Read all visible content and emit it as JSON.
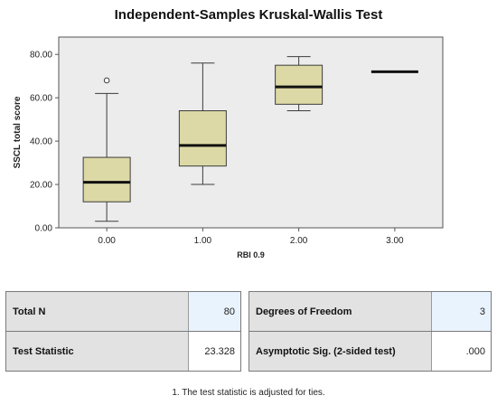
{
  "chart_data": {
    "type": "boxplot",
    "title": "Independent-Samples Kruskal-Wallis Test",
    "xlabel": "RBI 0.9",
    "ylabel": "SSCL total score",
    "ylim": [
      0,
      88
    ],
    "yticks": [
      "0.00",
      "20.00",
      "40.00",
      "60.00",
      "80.00"
    ],
    "categories": [
      "0.00",
      "1.00",
      "2.00",
      "3.00"
    ],
    "groups": [
      {
        "category": "0.00",
        "min": 3,
        "q1": 12,
        "median": 21,
        "q3": 32.5,
        "max": 62,
        "outliers": [
          68
        ]
      },
      {
        "category": "1.00",
        "min": 20,
        "q1": 28.5,
        "median": 38,
        "q3": 54,
        "max": 76,
        "outliers": []
      },
      {
        "category": "2.00",
        "min": 54,
        "q1": 57,
        "median": 65,
        "q3": 75,
        "max": 79,
        "outliers": []
      },
      {
        "category": "3.00",
        "min": 72,
        "q1": 72,
        "median": 72,
        "q3": 72,
        "max": 72,
        "outliers": []
      }
    ],
    "colors": {
      "box_fill": "#ddd9a6",
      "box_stroke": "#3c3c3c",
      "median": "#111111",
      "plot_bg": "#ececec",
      "frame": "#555555"
    }
  },
  "stats_table": {
    "left": [
      {
        "label": "Total N",
        "value": "80"
      },
      {
        "label": "Test Statistic",
        "value": "23.328"
      }
    ],
    "right": [
      {
        "label": "Degrees of Freedom",
        "value": "3"
      },
      {
        "label": "Asymptotic Sig. (2-sided test)",
        "value": ".000"
      }
    ]
  },
  "footnote": "1. The test statistic is adjusted for ties."
}
